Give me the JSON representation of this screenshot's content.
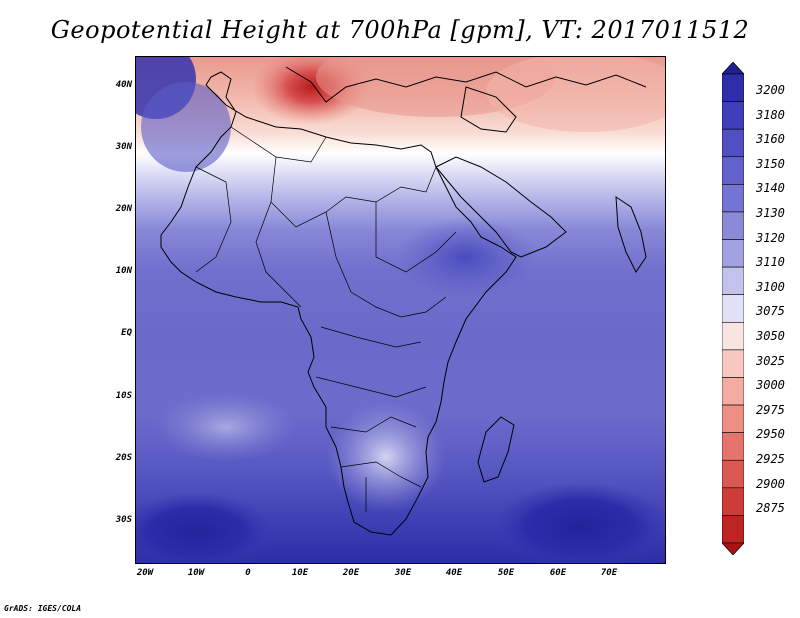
{
  "title": "Geopotential Height at 700hPa [gpm], VT: 2017011512",
  "credit": "GrADS: IGES/COLA",
  "map": {
    "lat_labels": [
      "40N",
      "30N",
      "20N",
      "10N",
      "EQ",
      "10S",
      "20S",
      "30S"
    ],
    "lon_labels": [
      "20W",
      "10W",
      "0",
      "10E",
      "20E",
      "30E",
      "40E",
      "50E",
      "60E",
      "70E"
    ]
  },
  "colorbar": {
    "levels": [
      "3200",
      "3180",
      "3160",
      "3150",
      "3140",
      "3130",
      "3120",
      "3110",
      "3100",
      "3075",
      "3050",
      "3025",
      "3000",
      "2975",
      "2950",
      "2925",
      "2900",
      "2875"
    ],
    "colors": [
      "#1f1f96",
      "#2e2eaa",
      "#3f3fba",
      "#5050c4",
      "#6262cc",
      "#7474d2",
      "#8a8ad8",
      "#a2a2e0",
      "#c2c2ec",
      "#e0e0f6",
      "#f8e4e0",
      "#f6c8c0",
      "#f2aca2",
      "#ec9086",
      "#e4746c",
      "#da5852",
      "#ce3c3a",
      "#be2424",
      "#a81414"
    ]
  }
}
